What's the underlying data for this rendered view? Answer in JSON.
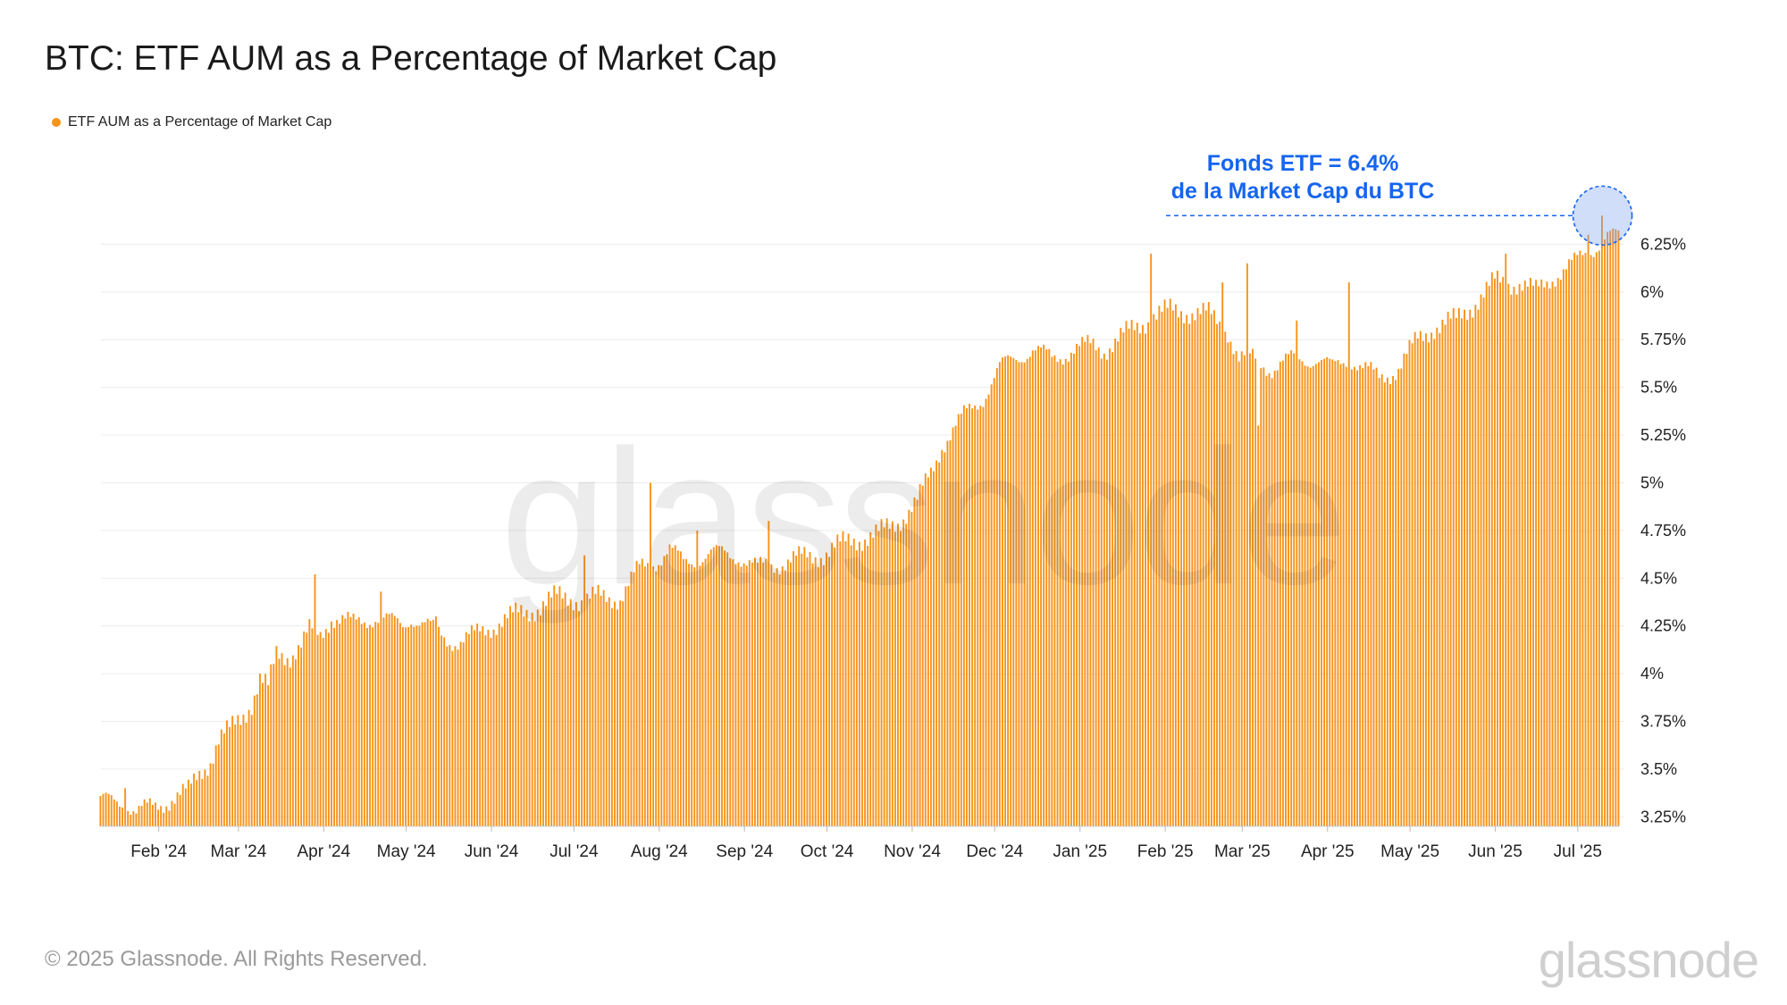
{
  "title": "BTC: ETF AUM as a Percentage of Market Cap",
  "legend": {
    "label": "ETF AUM as a Percentage of Market Cap",
    "color": "#f7931a"
  },
  "annotation": {
    "line1": "Fonds ETF = 6.4%",
    "line2": "de la Market Cap du BTC",
    "color": "#1565f0"
  },
  "watermark": "glassnode",
  "footer": {
    "copyright": "© 2025 Glassnode. All Rights Reserved.",
    "logo": "glassnode"
  },
  "chart_data": {
    "type": "bar",
    "title": "BTC: ETF AUM as a Percentage of Market Cap",
    "xlabel": "",
    "ylabel": "",
    "ylim": [
      3.2,
      6.5
    ],
    "y_ticks": [
      3.25,
      3.5,
      3.75,
      4,
      4.25,
      4.5,
      4.75,
      5,
      5.25,
      5.5,
      5.75,
      6,
      6.25
    ],
    "y_tick_labels": [
      "3.25%",
      "3.5%",
      "3.75%",
      "4%",
      "4.25%",
      "4.5%",
      "4.75%",
      "5%",
      "5.25%",
      "5.5%",
      "5.75%",
      "6%",
      "6.25%"
    ],
    "x_range": [
      "2024-01-11",
      "2025-07-16"
    ],
    "x_ticks": [
      "2024-02-01",
      "2024-03-01",
      "2024-04-01",
      "2024-05-01",
      "2024-06-01",
      "2024-07-01",
      "2024-08-01",
      "2024-09-01",
      "2024-10-01",
      "2024-11-01",
      "2024-12-01",
      "2025-01-01",
      "2025-02-01",
      "2025-03-01",
      "2025-04-01",
      "2025-05-01",
      "2025-06-01",
      "2025-07-01"
    ],
    "x_tick_labels": [
      "Feb '24",
      "Mar '24",
      "Apr '24",
      "May '24",
      "Jun '24",
      "Jul '24",
      "Aug '24",
      "Sep '24",
      "Oct '24",
      "Nov '24",
      "Dec '24",
      "Jan '25",
      "Feb '25",
      "Mar '25",
      "Apr '25",
      "May '25",
      "Jun '25",
      "Jul '25"
    ],
    "grid": true,
    "legend_position": "top-left",
    "series": [
      {
        "name": "ETF AUM as a Percentage of Market Cap",
        "color": "#f7931a",
        "frequency": "daily",
        "anchors": [
          [
            "2024-01-11",
            3.33
          ],
          [
            "2024-01-20",
            3.33
          ],
          [
            "2024-01-24",
            3.28
          ],
          [
            "2024-01-31",
            3.3
          ],
          [
            "2024-02-06",
            3.35
          ],
          [
            "2024-02-12",
            3.38
          ],
          [
            "2024-02-16",
            3.48
          ],
          [
            "2024-02-20",
            3.55
          ],
          [
            "2024-02-23",
            3.65
          ],
          [
            "2024-02-27",
            3.7
          ],
          [
            "2024-03-02",
            3.77
          ],
          [
            "2024-03-06",
            3.85
          ],
          [
            "2024-03-09",
            3.97
          ],
          [
            "2024-03-12",
            3.92
          ],
          [
            "2024-03-15",
            4.1
          ],
          [
            "2024-03-20",
            4.1
          ],
          [
            "2024-03-24",
            4.15
          ],
          [
            "2024-03-27",
            4.22
          ],
          [
            "2024-03-31",
            4.2
          ],
          [
            "2024-04-04",
            4.3
          ],
          [
            "2024-04-12",
            4.26
          ],
          [
            "2024-04-20",
            4.3
          ],
          [
            "2024-04-30",
            4.25
          ],
          [
            "2024-05-03",
            4.3
          ],
          [
            "2024-05-10",
            4.24
          ],
          [
            "2024-05-16",
            4.18
          ],
          [
            "2024-05-21",
            4.17
          ],
          [
            "2024-05-26",
            4.2
          ],
          [
            "2024-06-05",
            4.28
          ],
          [
            "2024-06-15",
            4.33
          ],
          [
            "2024-06-25",
            4.4
          ],
          [
            "2024-07-01",
            4.4
          ],
          [
            "2024-07-05",
            4.38
          ],
          [
            "2024-07-10",
            4.4
          ],
          [
            "2024-07-18",
            4.4
          ],
          [
            "2024-07-25",
            4.55
          ],
          [
            "2024-08-01",
            4.6
          ],
          [
            "2024-08-05",
            4.65
          ],
          [
            "2024-08-10",
            4.58
          ],
          [
            "2024-08-20",
            4.63
          ],
          [
            "2024-08-30",
            4.62
          ],
          [
            "2024-09-06",
            4.55
          ],
          [
            "2024-09-10",
            4.57
          ],
          [
            "2024-09-20",
            4.6
          ],
          [
            "2024-09-30",
            4.63
          ],
          [
            "2024-10-10",
            4.7
          ],
          [
            "2024-10-20",
            4.73
          ],
          [
            "2024-10-27",
            4.8
          ],
          [
            "2024-11-03",
            4.9
          ],
          [
            "2024-11-08",
            5.05
          ],
          [
            "2024-11-12",
            5.2
          ],
          [
            "2024-11-20",
            5.35
          ],
          [
            "2024-11-27",
            5.45
          ],
          [
            "2024-12-03",
            5.6
          ],
          [
            "2024-12-08",
            5.65
          ],
          [
            "2024-12-15",
            5.7
          ],
          [
            "2024-12-22",
            5.65
          ],
          [
            "2024-12-30",
            5.7
          ],
          [
            "2025-01-06",
            5.72
          ],
          [
            "2025-01-10",
            5.7
          ],
          [
            "2025-01-15",
            5.75
          ],
          [
            "2025-01-20",
            5.8
          ],
          [
            "2025-01-28",
            5.88
          ],
          [
            "2025-02-03",
            5.9
          ],
          [
            "2025-02-10",
            5.9
          ],
          [
            "2025-02-17",
            5.88
          ],
          [
            "2025-02-24",
            5.8
          ],
          [
            "2025-02-28",
            5.65
          ],
          [
            "2025-03-05",
            5.65
          ],
          [
            "2025-03-12",
            5.6
          ],
          [
            "2025-03-20",
            5.65
          ],
          [
            "2025-03-28",
            5.65
          ],
          [
            "2025-04-03",
            5.6
          ],
          [
            "2025-04-09",
            5.66
          ],
          [
            "2025-04-14",
            5.6
          ],
          [
            "2025-04-20",
            5.55
          ],
          [
            "2025-04-27",
            5.6
          ],
          [
            "2025-05-04",
            5.75
          ],
          [
            "2025-05-10",
            5.82
          ],
          [
            "2025-05-18",
            5.85
          ],
          [
            "2025-05-25",
            5.95
          ],
          [
            "2025-06-01",
            6.05
          ],
          [
            "2025-06-10",
            6.05
          ],
          [
            "2025-06-16",
            6.0
          ],
          [
            "2025-06-22",
            6.08
          ],
          [
            "2025-06-30",
            6.15
          ],
          [
            "2025-07-06",
            6.22
          ],
          [
            "2025-07-12",
            6.3
          ],
          [
            "2025-07-16",
            6.28
          ]
        ],
        "spikes": [
          [
            "2024-01-20",
            3.4
          ],
          [
            "2024-03-29",
            4.52
          ],
          [
            "2024-04-22",
            4.43
          ],
          [
            "2024-05-12",
            4.3
          ],
          [
            "2024-07-05",
            4.62
          ],
          [
            "2024-07-29",
            5.0
          ],
          [
            "2024-08-15",
            4.75
          ],
          [
            "2024-09-10",
            4.8
          ],
          [
            "2025-01-27",
            6.2
          ],
          [
            "2025-02-22",
            6.05
          ],
          [
            "2025-03-03",
            6.15
          ],
          [
            "2025-03-07",
            5.3
          ],
          [
            "2025-03-21",
            5.85
          ],
          [
            "2025-04-09",
            6.05
          ],
          [
            "2025-06-05",
            6.2
          ],
          [
            "2025-07-05",
            6.3
          ],
          [
            "2025-07-10",
            6.4
          ]
        ]
      }
    ]
  }
}
